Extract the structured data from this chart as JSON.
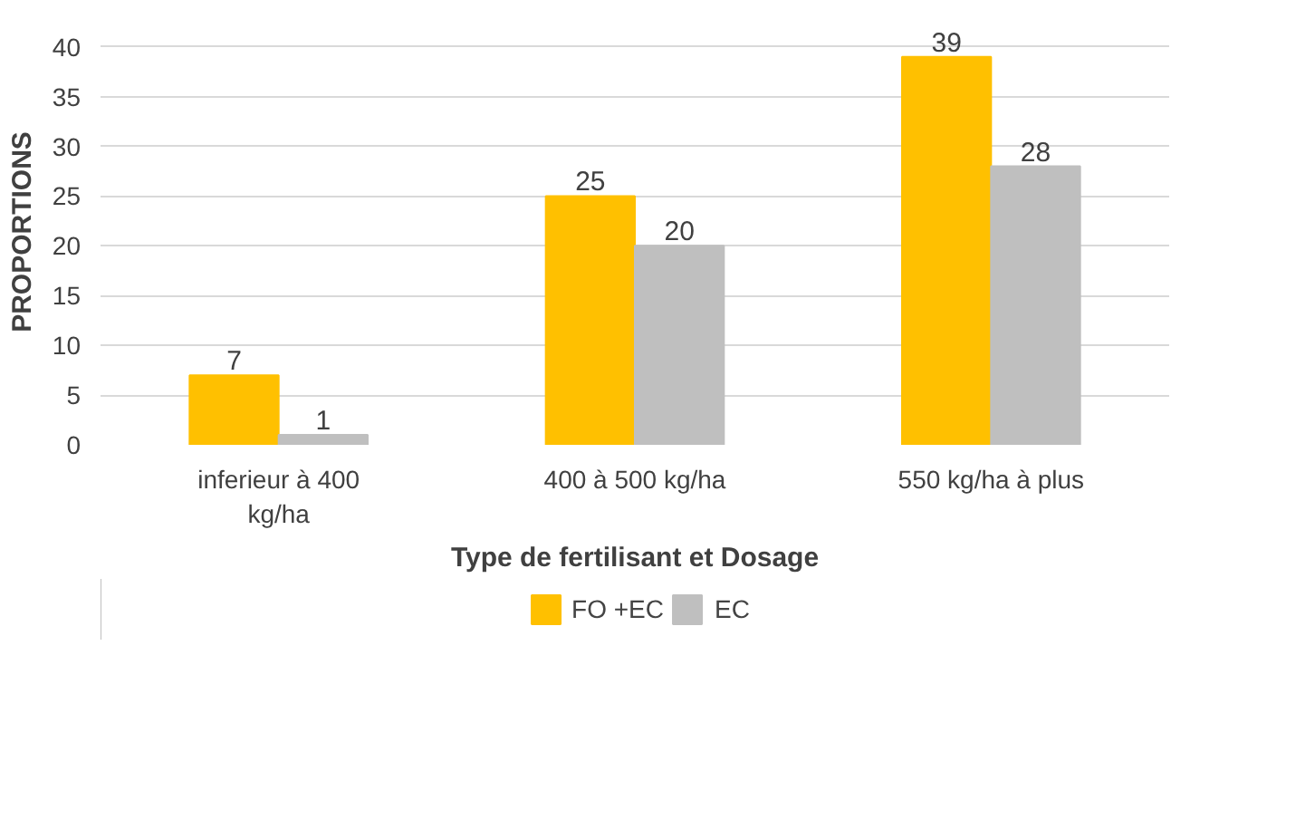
{
  "chart_data": {
    "type": "bar",
    "xlabel": "Type de fertilisant et Dosage",
    "ylabel": "PROPORTIONS",
    "categories": [
      "inferieur à 400 kg/ha",
      "400 à 500 kg/ha",
      "550 kg/ha à plus"
    ],
    "series": [
      {
        "name": "FO +EC",
        "color": "#ffc000",
        "values": [
          7,
          25,
          39
        ]
      },
      {
        "name": "EC",
        "color": "#bfbfbf",
        "values": [
          1,
          20,
          28
        ]
      }
    ],
    "ylim": [
      0,
      40
    ],
    "yticks": [
      0,
      5,
      10,
      15,
      20,
      25,
      30,
      35,
      40
    ],
    "grid": "y",
    "legend": "bottom",
    "data_labels": true
  }
}
